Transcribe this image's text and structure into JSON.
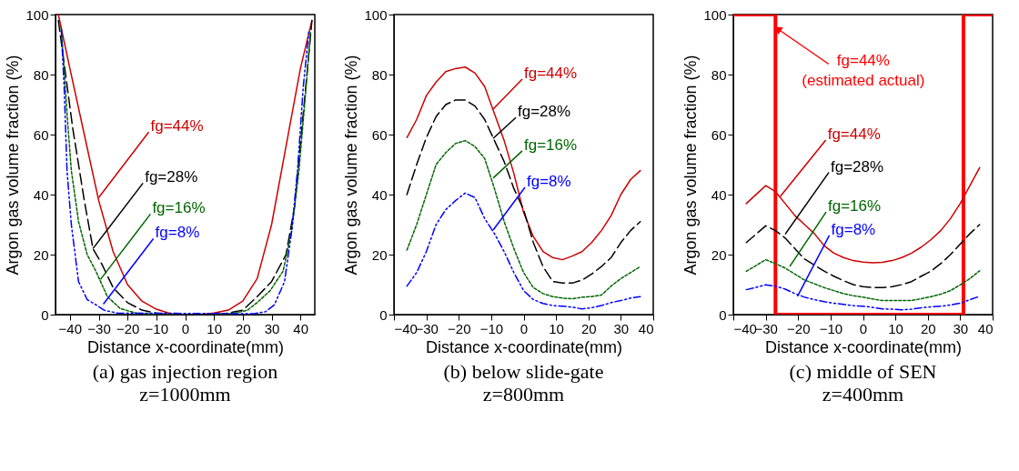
{
  "chart_data": [
    {
      "type": "line",
      "title": "(a) gas injection region",
      "subtitle": "z=1000mm",
      "xlabel": "Distance x-coordinate(mm)",
      "ylabel": "Argon gas volume fraction (%)",
      "xlim": [
        -45,
        45
      ],
      "xticks": [
        -40,
        -30,
        -20,
        -10,
        0,
        10,
        20,
        30,
        40
      ],
      "ylim": [
        0,
        100
      ],
      "yticks": [
        0,
        20,
        40,
        60,
        80,
        100
      ],
      "grid": false,
      "legend": false,
      "series": [
        {
          "color": "#cc0000",
          "line_style": "solid",
          "x": [
            -44,
            -40,
            -35,
            -30,
            -25,
            -20,
            -15,
            -10,
            -5,
            0,
            5,
            10,
            15,
            20,
            25,
            30,
            35,
            40,
            44
          ],
          "values": [
            100,
            82,
            60,
            38,
            21,
            10,
            4.5,
            1.8,
            0.3,
            0,
            0,
            0.5,
            1.5,
            4.5,
            12,
            30,
            56,
            82,
            98
          ]
        },
        {
          "color": "#000000",
          "line_style": "dashed",
          "x": [
            -44,
            -41.5,
            -39,
            -35,
            -32,
            -29,
            -25,
            -20,
            -15,
            -10,
            -5,
            0,
            5,
            10,
            15,
            20,
            25,
            30,
            35,
            38,
            41,
            44
          ],
          "values": [
            98,
            80,
            62,
            38,
            22,
            17,
            9,
            4,
            1.5,
            0.5,
            0,
            0,
            0,
            0,
            0.5,
            1.5,
            6,
            11,
            20,
            36,
            67,
            98
          ]
        },
        {
          "color": "#006600",
          "line_style": "dotted",
          "x": [
            -43,
            -41,
            -39.5,
            -37,
            -34,
            -31,
            -27,
            -22.5,
            -17,
            -10,
            0,
            10,
            17,
            21.5,
            25,
            29.5,
            34,
            37,
            39.5,
            42,
            43.5
          ],
          "values": [
            96,
            67,
            48,
            31,
            20,
            14.5,
            6,
            2,
            0.5,
            0,
            0,
            0,
            0.5,
            1.4,
            4,
            8,
            14.5,
            28,
            48,
            76,
            94
          ]
        },
        {
          "color": "#0000ff",
          "line_style": "dashdot",
          "x": [
            -43,
            -42,
            -41,
            -39.5,
            -37,
            -34,
            -31,
            -28,
            -23.5,
            24,
            28,
            31,
            34.5,
            37,
            39,
            41,
            43
          ],
          "values": [
            95,
            76,
            48,
            30,
            11,
            5,
            3.3,
            1.4,
            0.5,
            0.3,
            1,
            3.3,
            11,
            28,
            48,
            76,
            95
          ]
        }
      ],
      "annotations": [
        {
          "text": "fg=44%",
          "x": -30,
          "y": 39
        },
        {
          "text": "fg=28%",
          "x": -32,
          "y": 22
        },
        {
          "text": "fg=16%",
          "x": -29.4,
          "y": 11.7
        },
        {
          "text": "fg=8%",
          "x": -28.4,
          "y": 3.5
        }
      ]
    },
    {
      "type": "line",
      "title": "(b) below slide-gate",
      "subtitle": "z=800mm",
      "xlabel": "Distance x-coordinate(mm)",
      "ylabel": "Argon gas volume fraction (%)",
      "xlim": [
        -40,
        40
      ],
      "xticks": [
        -40,
        -30,
        -20,
        -10,
        0,
        10,
        20,
        30,
        40
      ],
      "ylim": [
        0,
        100
      ],
      "yticks": [
        0,
        20,
        40,
        60,
        80,
        100
      ],
      "grid": false,
      "legend": false,
      "x": [
        -36,
        -33,
        -30,
        -27,
        -24,
        -21,
        -18,
        -15,
        -12,
        -9,
        -6,
        -3,
        0,
        3,
        6,
        9,
        12,
        15,
        18,
        21,
        24,
        27,
        30,
        33,
        36
      ],
      "series": [
        {
          "color": "#cc0000",
          "line_style": "solid",
          "values": [
            59,
            65,
            73,
            77.5,
            81,
            82,
            82.5,
            80.5,
            76,
            67,
            58,
            47,
            34,
            26,
            21,
            19,
            18.3,
            19.5,
            21,
            24,
            28,
            33,
            40,
            45,
            48
          ]
        },
        {
          "color": "#000000",
          "line_style": "dashed",
          "values": [
            40,
            50,
            59,
            66,
            70,
            71.5,
            71.5,
            69.5,
            65,
            58,
            51,
            42,
            35,
            24,
            16,
            11,
            10.5,
            10.5,
            11.5,
            13.5,
            16,
            19,
            24,
            28,
            31
          ]
        },
        {
          "color": "#006600",
          "line_style": "dotted",
          "values": [
            21.5,
            30,
            40,
            50,
            54,
            57,
            58,
            56,
            52,
            42,
            31,
            22,
            14,
            9,
            7,
            6,
            5.5,
            5.3,
            5.8,
            6,
            6.5,
            9.5,
            12,
            14,
            16
          ]
        },
        {
          "color": "#0000ff",
          "line_style": "dashdot",
          "values": [
            9.5,
            14,
            21,
            30,
            35,
            38,
            40.5,
            39,
            32,
            27,
            21,
            14,
            8,
            5,
            3.7,
            3,
            2.8,
            2.5,
            1.9,
            2.3,
            3,
            4,
            4.7,
            5.5,
            6
          ]
        }
      ],
      "annotations": [
        {
          "text": "fg=44%",
          "x": -9.4,
          "y": 68.5
        },
        {
          "text": "fg=28%",
          "x": -9.4,
          "y": 58.7
        },
        {
          "text": "fg=16%",
          "x": -9.4,
          "y": 45.5
        },
        {
          "text": "fg=8%",
          "x": -9.4,
          "y": 28.2
        }
      ]
    },
    {
      "type": "line",
      "title": "(c) middle of SEN",
      "subtitle": "z=400mm",
      "xlabel": "Distance x-coordinate(mm)",
      "ylabel": "Argon gas volume fraction (%)",
      "xlim": [
        -40,
        40
      ],
      "xticks": [
        -40,
        -30,
        -20,
        -10,
        0,
        10,
        20,
        30,
        40
      ],
      "ylim": [
        0,
        100
      ],
      "yticks": [
        0,
        20,
        40,
        60,
        80,
        100
      ],
      "grid": false,
      "legend": false,
      "x": [
        -36,
        -30,
        -27,
        -24,
        -21,
        -18,
        -15,
        -12,
        -9,
        -6,
        -3,
        0,
        3,
        6,
        9,
        12,
        15,
        18,
        21,
        24,
        27,
        30,
        33,
        36
      ],
      "series": [
        {
          "type": "step",
          "color": "#ff0000",
          "line_style": "solid",
          "x": [
            -40,
            -27,
            31,
            40
          ],
          "values": [
            100,
            0,
            100,
            100
          ]
        },
        {
          "color": "#cc0000",
          "line_style": "solid",
          "values": [
            37,
            43,
            41,
            37,
            33,
            30,
            27,
            23,
            20.5,
            19,
            18,
            17.5,
            17.3,
            17.4,
            18,
            19,
            20.5,
            22.5,
            25,
            28,
            32,
            37,
            43,
            49
          ]
        },
        {
          "color": "#000000",
          "line_style": "dashed",
          "values": [
            24,
            29.6,
            28,
            25.5,
            22,
            18.5,
            16.5,
            14.5,
            12.8,
            11.3,
            10,
            9.3,
            9,
            9,
            9.3,
            10,
            11,
            12.8,
            14.5,
            17,
            20,
            23.5,
            27,
            30
          ]
        },
        {
          "color": "#006600",
          "line_style": "dotted",
          "values": [
            14.4,
            18.3,
            17,
            15.5,
            13.5,
            11.5,
            10.3,
            9,
            8,
            7,
            6.3,
            5.8,
            5.2,
            4.7,
            4.7,
            4.7,
            4.7,
            5.3,
            6,
            6.8,
            8,
            9.9,
            12,
            14.6
          ]
        },
        {
          "color": "#0000ff",
          "line_style": "dashdot",
          "values": [
            8.3,
            9.9,
            9.5,
            8.5,
            7,
            5.8,
            5,
            4.3,
            3.8,
            3.4,
            3,
            2.8,
            2.4,
            1.9,
            1.8,
            1.6,
            1.8,
            2.3,
            2.6,
            2.8,
            3.2,
            3.8,
            5,
            6.1
          ]
        }
      ],
      "annotations": [
        {
          "text": "fg=44%\n(estimated actual)",
          "x": -26,
          "y": 95
        },
        {
          "text": "fg=44%",
          "x": -25.5,
          "y": 39.4
        },
        {
          "text": "fg=28%",
          "x": -24,
          "y": 26.8
        },
        {
          "text": "fg=16%",
          "x": -22.6,
          "y": 16
        },
        {
          "text": "fg=8%",
          "x": -20.2,
          "y": 6.1
        }
      ]
    }
  ]
}
